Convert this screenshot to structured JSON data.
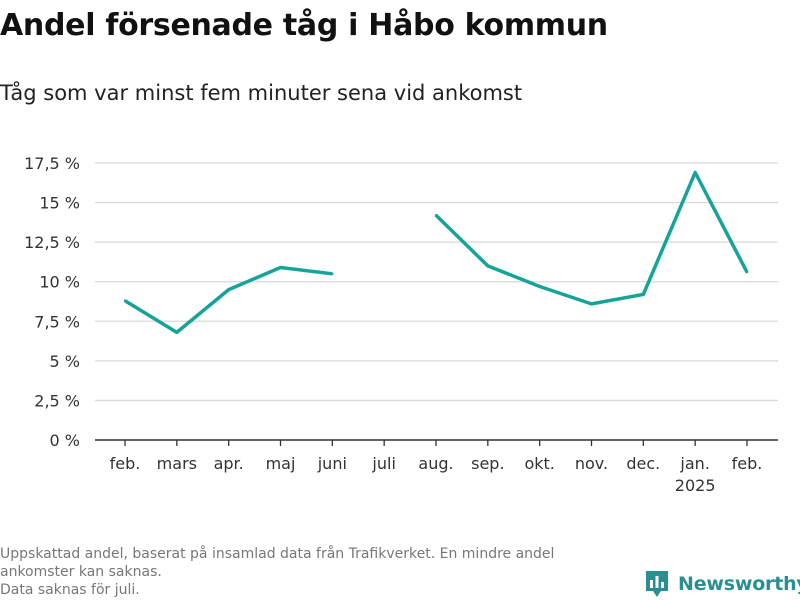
{
  "title": "Andel försenade tåg i Håbo kommun",
  "subtitle": "Tåg som var minst fem minuter sena vid ankomst",
  "footnote": {
    "line1": "Uppskattad andel, baserat på insamlad data från Trafikverket. En mindre andel",
    "line2": "ankomster kan saknas.",
    "line3": "Data saknas för juli."
  },
  "brand": {
    "name": "Newsworthy",
    "icon": "newsworthy-logo-icon"
  },
  "colors": {
    "line": "#16a39a",
    "grid": "#d9d9d9",
    "axis": "#333333",
    "brand": "#2a8f93"
  },
  "chart_data": {
    "type": "line",
    "title": "Andel försenade tåg i Håbo kommun",
    "subtitle": "Tåg som var minst fem minuter sena vid ankomst",
    "xlabel": "",
    "ylabel": "",
    "categories": [
      "feb.",
      "mars",
      "apr.",
      "maj",
      "juni",
      "juli",
      "aug.",
      "sep.",
      "okt.",
      "nov.",
      "dec.",
      "jan.",
      "feb."
    ],
    "year_labels": [
      "",
      "",
      "",
      "",
      "",
      "",
      "",
      "",
      "",
      "",
      "",
      "2025",
      ""
    ],
    "series": [
      {
        "name": "",
        "values": [
          8.8,
          6.8,
          9.5,
          10.9,
          10.5,
          null,
          14.2,
          11.0,
          9.7,
          8.6,
          9.2,
          16.9,
          10.6
        ]
      }
    ],
    "yticks": [
      0,
      2.5,
      5,
      7.5,
      10,
      12.5,
      15,
      17.5
    ],
    "ytick_labels": [
      "0 %",
      "2,5 %",
      "5 %",
      "7,5 %",
      "10 %",
      "12,5 %",
      "15 %",
      "17,5 %"
    ],
    "ylim": [
      0,
      17.5
    ],
    "grid": true,
    "legend": "none"
  }
}
